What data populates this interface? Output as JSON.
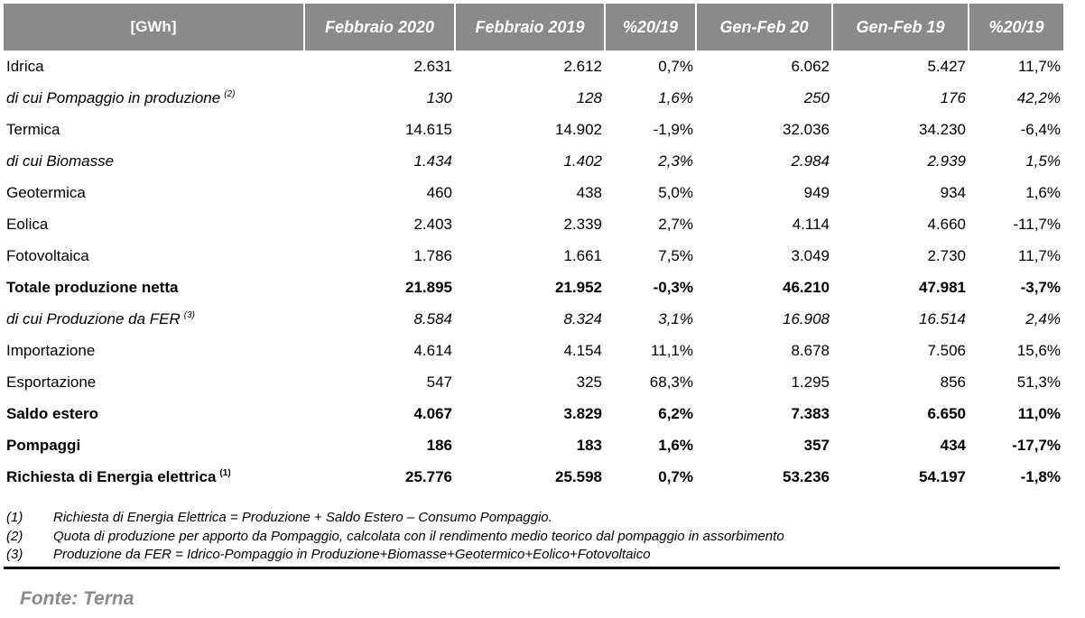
{
  "table": {
    "headers": [
      "[GWh]",
      "Febbraio 2020",
      "Febbraio 2019",
      "%20/19",
      "Gen-Feb 20",
      "Gen-Feb 19",
      "%20/19"
    ],
    "rows": [
      {
        "label": "Idrica",
        "sup": "",
        "style": "normal",
        "indent": 0,
        "values": [
          "2.631",
          "2.612",
          "0,7%",
          "6.062",
          "5.427",
          "11,7%"
        ]
      },
      {
        "label": "di cui Pompaggio in produzione",
        "sup": "(2)",
        "style": "italic",
        "indent": 1,
        "values": [
          "130",
          "128",
          "1,6%",
          "250",
          "176",
          "42,2%"
        ]
      },
      {
        "label": "Termica",
        "sup": "",
        "style": "normal",
        "indent": 0,
        "values": [
          "14.615",
          "14.902",
          "-1,9%",
          "32.036",
          "34.230",
          "-6,4%"
        ]
      },
      {
        "label": "di cui Biomasse",
        "sup": "",
        "style": "italic",
        "indent": 2,
        "values": [
          "1.434",
          "1.402",
          "2,3%",
          "2.984",
          "2.939",
          "1,5%"
        ]
      },
      {
        "label": "Geotermica",
        "sup": "",
        "style": "normal",
        "indent": 0,
        "values": [
          "460",
          "438",
          "5,0%",
          "949",
          "934",
          "1,6%"
        ]
      },
      {
        "label": "Eolica",
        "sup": "",
        "style": "normal",
        "indent": 0,
        "values": [
          "2.403",
          "2.339",
          "2,7%",
          "4.114",
          "4.660",
          "-11,7%"
        ]
      },
      {
        "label": "Fotovoltaica",
        "sup": "",
        "style": "normal",
        "indent": 0,
        "values": [
          "1.786",
          "1.661",
          "7,5%",
          "3.049",
          "2.730",
          "11,7%"
        ]
      },
      {
        "label": "Totale produzione netta",
        "sup": "",
        "style": "bold",
        "indent": 0,
        "values": [
          "21.895",
          "21.952",
          "-0,3%",
          "46.210",
          "47.981",
          "-3,7%"
        ]
      },
      {
        "label": "di cui Produzione da FER",
        "sup": "(3)",
        "style": "italic",
        "indent": 3,
        "values": [
          "8.584",
          "8.324",
          "3,1%",
          "16.908",
          "16.514",
          "2,4%"
        ]
      },
      {
        "label": "Importazione",
        "sup": "",
        "style": "normal",
        "indent": 4,
        "values": [
          "4.614",
          "4.154",
          "11,1%",
          "8.678",
          "7.506",
          "15,6%"
        ]
      },
      {
        "label": "Esportazione",
        "sup": "",
        "style": "normal",
        "indent": 4,
        "values": [
          "547",
          "325",
          "68,3%",
          "1.295",
          "856",
          "51,3%"
        ]
      },
      {
        "label": "Saldo estero",
        "sup": "",
        "style": "bold",
        "indent": 0,
        "values": [
          "4.067",
          "3.829",
          "6,2%",
          "7.383",
          "6.650",
          "11,0%"
        ]
      },
      {
        "label": "Pompaggi",
        "sup": "",
        "style": "bold",
        "indent": 0,
        "values": [
          "186",
          "183",
          "1,6%",
          "357",
          "434",
          "-17,7%"
        ]
      },
      {
        "label": "Richiesta di Energia elettrica",
        "sup": "(1)",
        "style": "bold",
        "indent": 0,
        "values": [
          "25.776",
          "25.598",
          "0,7%",
          "53.236",
          "54.197",
          "-1,8%"
        ]
      }
    ]
  },
  "notes": [
    {
      "num": "(1)",
      "text": "Richiesta di Energia Elettrica = Produzione + Saldo Estero – Consumo Pompaggio."
    },
    {
      "num": "(2)",
      "text": "Quota di produzione per apporto da Pompaggio, calcolata con il rendimento medio teorico dal pompaggio in assorbimento"
    },
    {
      "num": "(3)",
      "text": "Produzione da FER = Idrico-Pompaggio in Produzione+Biomasse+Geotermico+Eolico+Fotovoltaico"
    }
  ],
  "source": "Fonte: Terna",
  "colors": {
    "header_bg": "#8a8a8a",
    "header_text": "#ffffff",
    "source_text": "#8c8c8c"
  }
}
